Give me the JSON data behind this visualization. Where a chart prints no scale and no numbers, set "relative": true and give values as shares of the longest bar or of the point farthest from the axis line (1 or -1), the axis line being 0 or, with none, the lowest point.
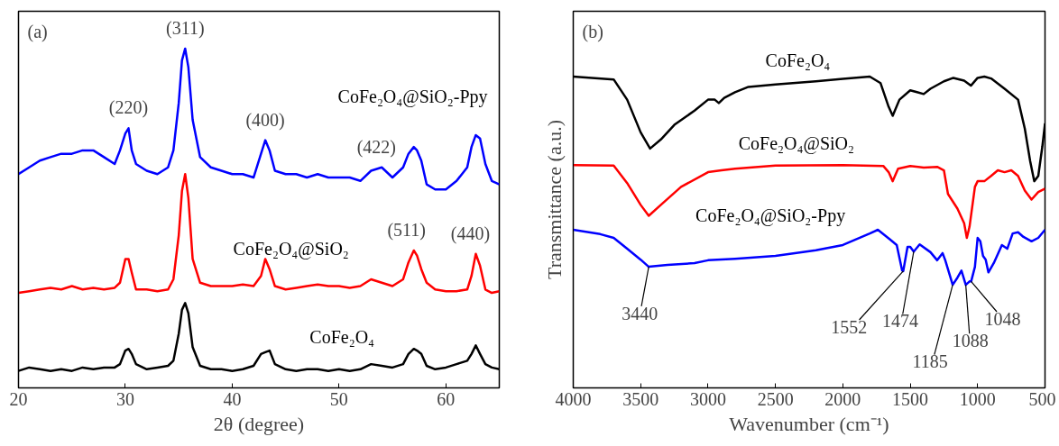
{
  "chart_data": [
    {
      "type": "line",
      "xlabel": "2θ (degree)",
      "relative": true,
      "xlim": [
        20,
        65
      ],
      "xticks": [
        20,
        30,
        40,
        50,
        60
      ],
      "tick_labels": "x",
      "grid": false,
      "marker": "none",
      "line_style": "solid",
      "x": [
        20,
        21,
        22,
        23,
        24,
        25,
        26,
        27,
        28,
        29,
        29.5,
        30,
        30.3,
        30.6,
        31,
        32,
        33,
        34,
        34.5,
        35,
        35.3,
        35.6,
        35.9,
        36.3,
        37,
        38,
        39,
        40,
        41,
        42,
        42.7,
        43.1,
        43.5,
        44,
        45,
        46,
        47,
        48,
        49,
        50,
        51,
        52,
        53,
        54,
        55,
        56,
        56.5,
        57,
        57.3,
        57.7,
        58.2,
        59,
        60,
        61,
        62,
        62.4,
        62.8,
        63.2,
        63.7,
        64.3,
        65
      ],
      "series": [
        {
          "name": "CoFe₂O₄",
          "color": "#000000",
          "values": [
            0.05,
            0.06,
            0.055,
            0.05,
            0.055,
            0.05,
            0.06,
            0.055,
            0.06,
            0.06,
            0.07,
            0.11,
            0.115,
            0.1,
            0.07,
            0.055,
            0.06,
            0.065,
            0.08,
            0.16,
            0.23,
            0.25,
            0.22,
            0.12,
            0.065,
            0.055,
            0.055,
            0.05,
            0.055,
            0.065,
            0.1,
            0.105,
            0.11,
            0.07,
            0.055,
            0.05,
            0.055,
            0.055,
            0.05,
            0.055,
            0.05,
            0.055,
            0.07,
            0.065,
            0.06,
            0.07,
            0.1,
            0.115,
            0.11,
            0.1,
            0.065,
            0.055,
            0.06,
            0.07,
            0.08,
            0.1,
            0.125,
            0.1,
            0.07,
            0.06,
            0.055
          ]
        },
        {
          "name": "CoFe₂O₄@SiO₂",
          "color": "#ff0000",
          "values": [
            0.28,
            0.285,
            0.29,
            0.295,
            0.29,
            0.3,
            0.29,
            0.295,
            0.29,
            0.295,
            0.31,
            0.38,
            0.38,
            0.34,
            0.29,
            0.29,
            0.285,
            0.29,
            0.32,
            0.45,
            0.58,
            0.63,
            0.56,
            0.38,
            0.31,
            0.3,
            0.3,
            0.3,
            0.305,
            0.3,
            0.33,
            0.38,
            0.35,
            0.3,
            0.29,
            0.295,
            0.3,
            0.305,
            0.3,
            0.3,
            0.295,
            0.3,
            0.32,
            0.31,
            0.3,
            0.32,
            0.37,
            0.405,
            0.39,
            0.35,
            0.31,
            0.29,
            0.285,
            0.285,
            0.29,
            0.33,
            0.395,
            0.36,
            0.29,
            0.28,
            0.285
          ]
        },
        {
          "name": "CoFe₂O₄@SiO₂-Ppy",
          "color": "#0000ff",
          "values": [
            0.63,
            0.65,
            0.67,
            0.68,
            0.69,
            0.69,
            0.7,
            0.7,
            0.68,
            0.66,
            0.7,
            0.75,
            0.765,
            0.7,
            0.66,
            0.64,
            0.63,
            0.65,
            0.7,
            0.84,
            0.965,
            1.0,
            0.945,
            0.79,
            0.68,
            0.65,
            0.64,
            0.63,
            0.63,
            0.62,
            0.69,
            0.73,
            0.7,
            0.64,
            0.63,
            0.63,
            0.62,
            0.63,
            0.62,
            0.62,
            0.62,
            0.61,
            0.64,
            0.65,
            0.62,
            0.65,
            0.69,
            0.71,
            0.7,
            0.67,
            0.6,
            0.585,
            0.585,
            0.61,
            0.65,
            0.71,
            0.745,
            0.735,
            0.66,
            0.61,
            0.6
          ]
        }
      ],
      "annotations": [
        "(a)",
        {
          "text": "(220)",
          "x": 30.3,
          "y": 0.765
        },
        {
          "text": "(311)",
          "x": 35.6,
          "y": 1.0
        },
        {
          "text": "(400)",
          "x": 43.1,
          "y": 0.73
        },
        {
          "text": "(422)",
          "x": 53.5,
          "y": 0.65
        },
        {
          "text": "(511)",
          "x": 57.0,
          "y": 0.405
        },
        {
          "text": "(440)",
          "x": 62.8,
          "y": 0.395
        }
      ]
    },
    {
      "type": "line",
      "xlabel": "Wavenumber (cm⁻¹)",
      "ylabel": "Transmittance (a.u.)",
      "relative": true,
      "xlim": [
        4000,
        500
      ],
      "xticks": [
        4000,
        3500,
        3000,
        2500,
        2000,
        1500,
        1000,
        500
      ],
      "tick_labels": "x",
      "grid": false,
      "marker": "none",
      "line_style": "solid",
      "series": [
        {
          "name": "CoFe₂O₄",
          "color": "#000000",
          "x": [
            4000,
            3700,
            3600,
            3500,
            3430,
            3350,
            3250,
            3100,
            3000,
            2950,
            2920,
            2880,
            2800,
            2700,
            2500,
            2200,
            2000,
            1800,
            1720,
            1660,
            1630,
            1580,
            1500,
            1450,
            1400,
            1350,
            1250,
            1180,
            1100,
            1050,
            1000,
            950,
            900,
            800,
            700,
            650,
            610,
            580,
            550,
            520,
            500
          ],
          "values": [
            1.0,
            0.991,
            0.926,
            0.821,
            0.769,
            0.798,
            0.845,
            0.891,
            0.926,
            0.926,
            0.915,
            0.932,
            0.95,
            0.967,
            0.975,
            0.985,
            0.993,
            1.0,
            0.979,
            0.903,
            0.874,
            0.926,
            0.956,
            0.95,
            0.944,
            0.961,
            0.985,
            0.996,
            0.987,
            0.971,
            0.996,
            1.0,
            0.994,
            0.961,
            0.926,
            0.833,
            0.728,
            0.664,
            0.681,
            0.775,
            0.85
          ]
        },
        {
          "name": "CoFe₂O₄@SiO₂",
          "color": "#ff0000",
          "x": [
            4000,
            3700,
            3600,
            3500,
            3440,
            3350,
            3200,
            3000,
            2900,
            2800,
            2500,
            2000,
            1700,
            1660,
            1630,
            1590,
            1500,
            1400,
            1300,
            1250,
            1220,
            1150,
            1100,
            1080,
            1060,
            1020,
            1000,
            950,
            900,
            850,
            800,
            750,
            700,
            650,
            600,
            550,
            500
          ],
          "values": [
            0.716,
            0.714,
            0.658,
            0.588,
            0.553,
            0.588,
            0.646,
            0.693,
            0.699,
            0.704,
            0.714,
            0.716,
            0.713,
            0.693,
            0.664,
            0.704,
            0.713,
            0.708,
            0.71,
            0.699,
            0.623,
            0.576,
            0.529,
            0.482,
            0.518,
            0.646,
            0.664,
            0.664,
            0.681,
            0.699,
            0.693,
            0.699,
            0.681,
            0.634,
            0.605,
            0.629,
            0.64
          ]
        },
        {
          "name": "CoFe₂O₄@SiO₂-Ppy",
          "color": "#0000ff",
          "x": [
            4000,
            3800,
            3700,
            3600,
            3500,
            3440,
            3300,
            3100,
            3000,
            2800,
            2500,
            2200,
            2000,
            1800,
            1740,
            1650,
            1600,
            1560,
            1552,
            1520,
            1500,
            1474,
            1430,
            1350,
            1300,
            1260,
            1240,
            1185,
            1150,
            1120,
            1088,
            1060,
            1048,
            1020,
            1000,
            980,
            960,
            940,
            920,
            880,
            820,
            780,
            740,
            700,
            660,
            600,
            550,
            500
          ],
          "values": [
            0.508,
            0.494,
            0.482,
            0.447,
            0.412,
            0.389,
            0.395,
            0.401,
            0.41,
            0.415,
            0.424,
            0.442,
            0.459,
            0.496,
            0.508,
            0.477,
            0.459,
            0.377,
            0.375,
            0.453,
            0.453,
            0.438,
            0.461,
            0.436,
            0.41,
            0.433,
            0.41,
            0.331,
            0.354,
            0.377,
            0.331,
            0.342,
            0.342,
            0.389,
            0.482,
            0.471,
            0.424,
            0.412,
            0.371,
            0.401,
            0.459,
            0.447,
            0.496,
            0.5,
            0.485,
            0.471,
            0.482,
            0.508
          ]
        }
      ],
      "annotations": [
        "(b)",
        {
          "text": "3440",
          "x": 3440,
          "y": 0.389
        },
        {
          "text": "1552",
          "x": 1552,
          "y": 0.375
        },
        {
          "text": "1474",
          "x": 1474,
          "y": 0.438
        },
        {
          "text": "1185",
          "x": 1185,
          "y": 0.331
        },
        {
          "text": "1088",
          "x": 1088,
          "y": 0.331
        },
        {
          "text": "1048",
          "x": 1048,
          "y": 0.342
        }
      ]
    }
  ]
}
